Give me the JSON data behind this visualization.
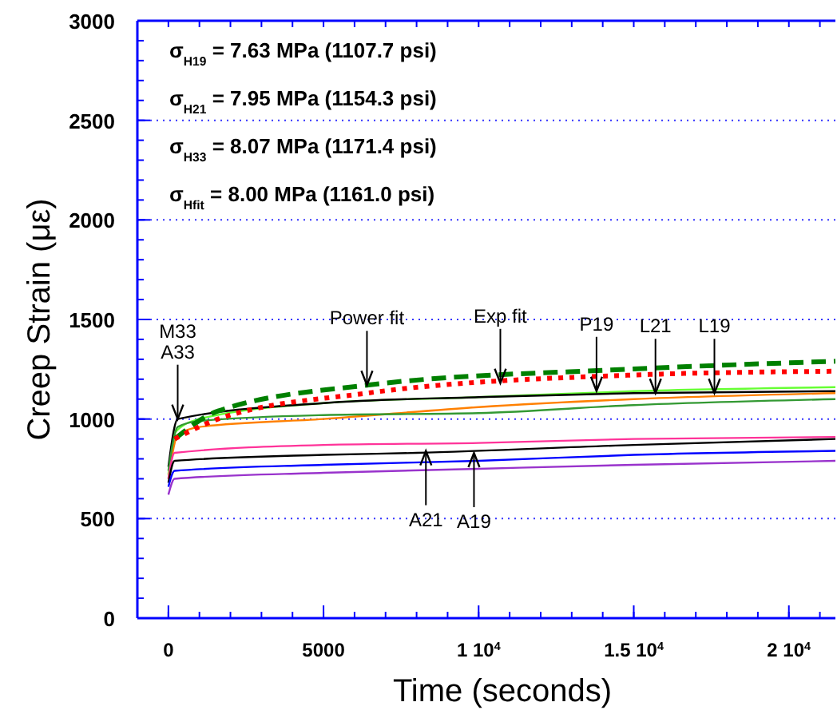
{
  "chart_data": {
    "type": "line",
    "xlabel": "Time (seconds)",
    "ylabel": "Creep Strain (με)",
    "xlim": [
      -1000,
      21500
    ],
    "ylim": [
      0,
      3000
    ],
    "xticks": [
      0,
      5000,
      {
        "value": 10000,
        "label": "1 10$^{4}$"
      },
      {
        "value": 15000,
        "label": "1.5 10$^{4}$"
      },
      {
        "value": 20000,
        "label": "2 10$^{4}$"
      }
    ],
    "yticks": [
      0,
      500,
      1000,
      1500,
      2000,
      2500,
      3000
    ],
    "grid": "y",
    "marker": "none",
    "series": [
      {
        "color": "#66ff33",
        "x": [
          0,
          200,
          1000,
          5000,
          10000,
          15000,
          21500
        ],
        "values": [
          720,
          930,
          1000,
          1080,
          1110,
          1140,
          1160
        ]
      },
      {
        "color": "#000000",
        "x": [
          0,
          300,
          5000,
          10000,
          15000,
          21500
        ],
        "values": [
          760,
          1000,
          1080,
          1110,
          1130,
          1140
        ]
      },
      {
        "color": "#ff8000",
        "x": [
          0,
          300,
          1000,
          5000,
          10000,
          15000,
          21500
        ],
        "values": [
          700,
          920,
          960,
          1000,
          1060,
          1100,
          1130
        ]
      },
      {
        "color": "#339933",
        "x": [
          0,
          300,
          1000,
          5000,
          10000,
          15000,
          21500
        ],
        "values": [
          740,
          960,
          990,
          1020,
          1030,
          1070,
          1100
        ]
      },
      {
        "color": "#ff3399",
        "x": [
          0,
          200,
          5000,
          10000,
          15000,
          21500
        ],
        "values": [
          700,
          830,
          870,
          880,
          900,
          910
        ]
      },
      {
        "color": "#000000",
        "x": [
          0,
          200,
          5000,
          8000,
          15000,
          21500
        ],
        "values": [
          680,
          790,
          820,
          830,
          870,
          900
        ]
      },
      {
        "color": "#0000ff",
        "x": [
          0,
          200,
          5000,
          10000,
          15000,
          21500
        ],
        "values": [
          660,
          740,
          770,
          790,
          820,
          840
        ]
      },
      {
        "color": "#9933cc",
        "x": [
          0,
          200,
          5000,
          10000,
          15000,
          21500
        ],
        "values": [
          620,
          700,
          730,
          750,
          770,
          790
        ]
      },
      {
        "color": "#008000",
        "line_style": "dashed",
        "x": [
          200,
          1600,
          6400,
          14800,
          21500
        ],
        "values": [
          900,
          1040,
          1170,
          1250,
          1290
        ]
      },
      {
        "color": "#ff0000",
        "line_style": "dotted",
        "x": [
          200,
          1600,
          6400,
          14800,
          21500
        ],
        "values": [
          900,
          1000,
          1130,
          1220,
          1240
        ]
      }
    ],
    "annotations": [
      "σ$_{H19}$ = 7.63 MPa (1107.7 psi)",
      "σ$_{H21}$ = 7.95 MPa (1154.3 psi)",
      "σ$_{H33}$ = 8.07 MPa (1171.4 psi)",
      "σ$_{Hfit}$ = 8.00 MPa (1161.0 psi)",
      {
        "text": "M33\nA33",
        "x": 300,
        "y": 1000
      },
      {
        "text": "Power fit",
        "x": 6400,
        "y": 1170
      },
      {
        "text": "Exp fit",
        "x": 10700,
        "y": 1180
      },
      {
        "text": "P19",
        "x": 13800,
        "y": 1140
      },
      {
        "text": "L21",
        "x": 15700,
        "y": 1130
      },
      {
        "text": "L19",
        "x": 17600,
        "y": 1130
      },
      {
        "text": "A21",
        "x": 8300,
        "y": 840
      },
      {
        "text": "A19",
        "x": 9850,
        "y": 830
      }
    ]
  }
}
